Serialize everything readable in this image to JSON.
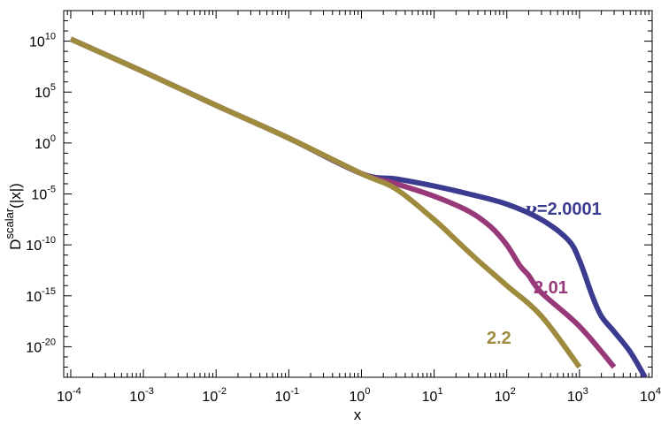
{
  "chart_data": {
    "type": "line",
    "xscale": "log",
    "yscale": "log",
    "xlabel": "x",
    "ylabel_main": "D",
    "ylabel_sup": "scalar",
    "ylabel_tail": "(|x|)",
    "xlim": [
      8e-05,
      10000
    ],
    "ylim": [
      1e-23,
      10000000000000.0
    ],
    "grid": false,
    "legend": "none",
    "xticks": [
      {
        "base": "10",
        "exp": "-4",
        "value": 0.0001
      },
      {
        "base": "10",
        "exp": "-3",
        "value": 0.001
      },
      {
        "base": "10",
        "exp": "-2",
        "value": 0.01
      },
      {
        "base": "10",
        "exp": "-1",
        "value": 0.1
      },
      {
        "base": "10",
        "exp": "0",
        "value": 1
      },
      {
        "base": "10",
        "exp": "1",
        "value": 10
      },
      {
        "base": "10",
        "exp": "2",
        "value": 100
      },
      {
        "base": "10",
        "exp": "3",
        "value": 1000
      },
      {
        "base": "10",
        "exp": "4",
        "value": 10000
      }
    ],
    "yticks": [
      {
        "base": "10",
        "exp": "10",
        "value": 10000000000.0
      },
      {
        "base": "10",
        "exp": "5",
        "value": 100000.0
      },
      {
        "base": "10",
        "exp": "0",
        "value": 1
      },
      {
        "base": "10",
        "exp": "-5",
        "value": 1e-05
      },
      {
        "base": "10",
        "exp": "-10",
        "value": 1e-10
      },
      {
        "base": "10",
        "exp": "-15",
        "value": 1e-15
      },
      {
        "base": "10",
        "exp": "-20",
        "value": 1e-20
      }
    ],
    "series": [
      {
        "name": "ν=2.0001",
        "color": "#3b3b8f",
        "x": [
          0.0001,
          0.001,
          0.01,
          0.1,
          1,
          3,
          10,
          30,
          100,
          300,
          700,
          1000,
          1500,
          2000,
          3000,
          5000,
          8000
        ],
        "y": [
          16000000000.0,
          10000000.0,
          5000.0,
          3,
          0.001,
          0.0003,
          6e-05,
          1e-05,
          1e-06,
          3e-08,
          3e-10,
          3e-12,
          1e-15,
          1e-17,
          3e-19,
          3e-21,
          1e-23
        ]
      },
      {
        "name": "2.01",
        "color": "#983a7a",
        "x": [
          0.0001,
          0.001,
          0.01,
          0.1,
          1,
          3,
          10,
          30,
          60,
          100,
          150,
          200,
          300,
          1000,
          3000
        ],
        "y": [
          16000000000.0,
          10000000.0,
          5000.0,
          3,
          0.001,
          0.0001,
          6e-06,
          2e-07,
          6e-09,
          1e-10,
          1e-12,
          1e-13,
          2e-15,
          1e-18,
          1e-22
        ]
      },
      {
        "name": "2.2",
        "color": "#9e8b3e",
        "x": [
          0.0001,
          0.001,
          0.01,
          0.1,
          1,
          3,
          10,
          20,
          40,
          100,
          300,
          1000
        ],
        "y": [
          16000000000.0,
          10000000.0,
          5000.0,
          3,
          0.001,
          3e-05,
          3e-08,
          3e-10,
          3e-12,
          1e-14,
          1e-17,
          1e-22
        ]
      }
    ]
  }
}
